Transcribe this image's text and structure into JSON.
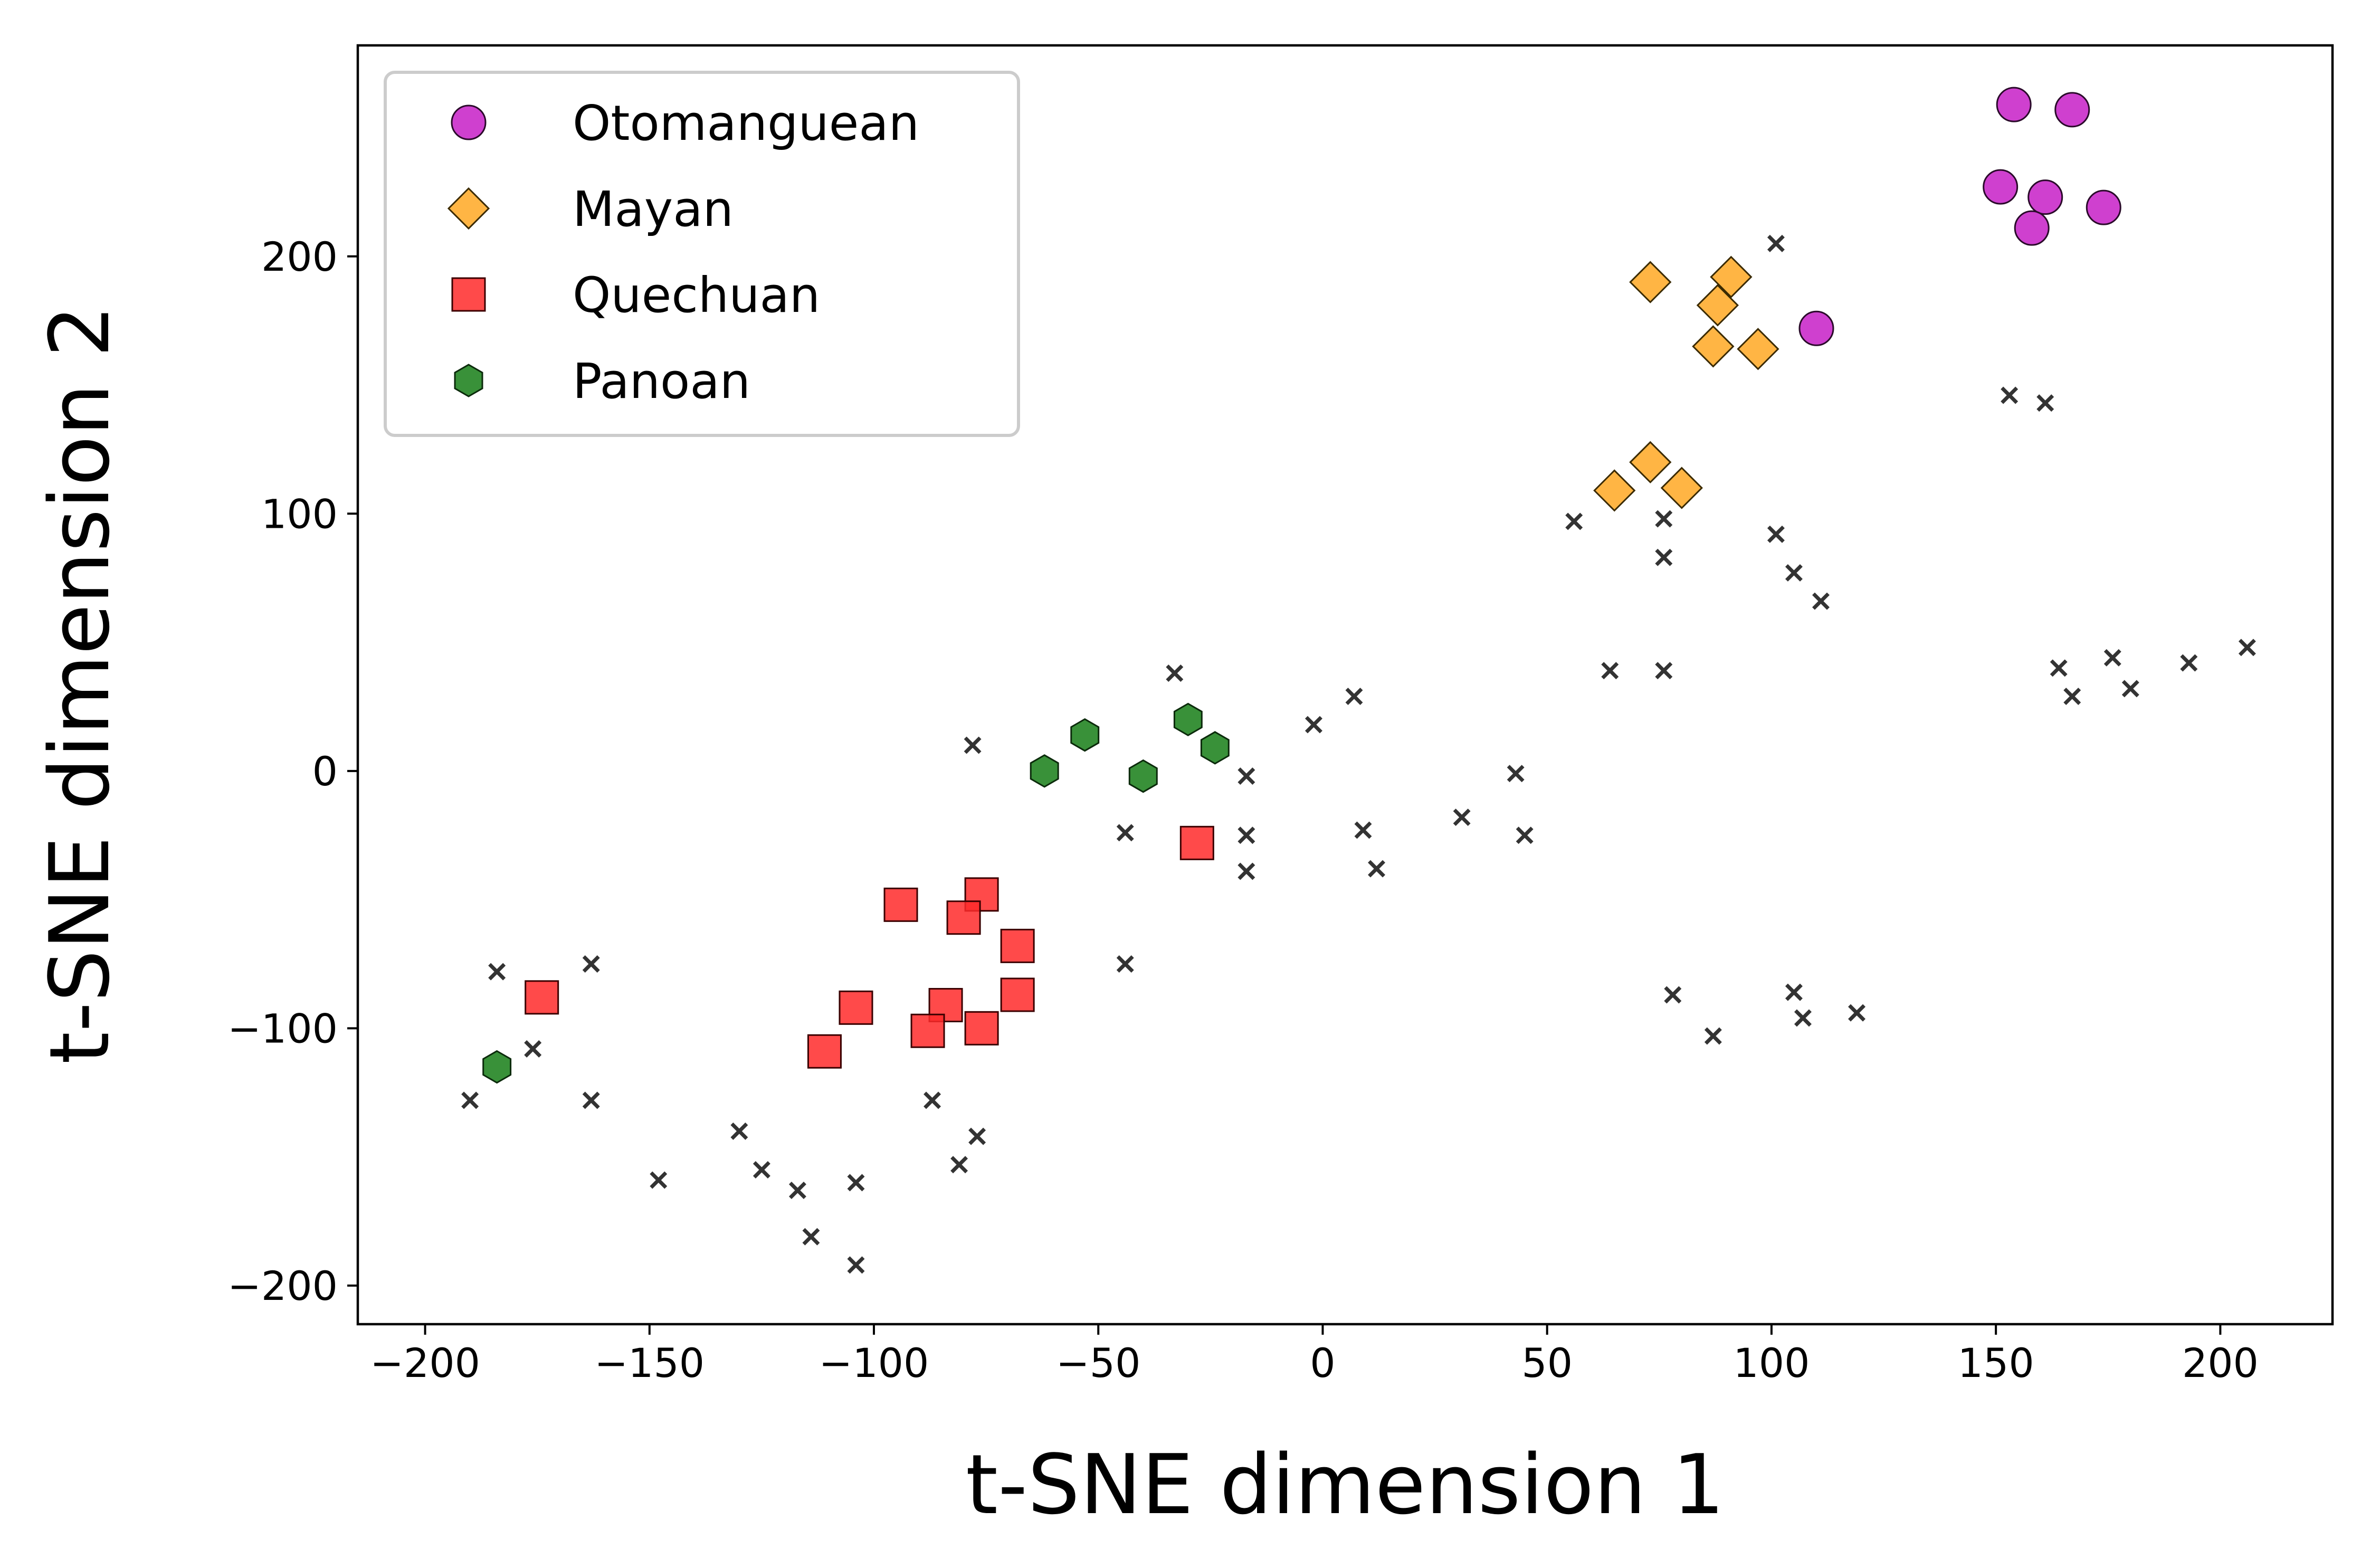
{
  "chart_data": {
    "type": "scatter",
    "xlabel": "t-SNE dimension 1",
    "ylabel": "t-SNE dimension 2",
    "xlim": [
      -215,
      225
    ],
    "ylim": [
      -215,
      282
    ],
    "xticks": [
      -200,
      -150,
      -100,
      -50,
      0,
      50,
      100,
      150,
      200
    ],
    "yticks": [
      -200,
      -100,
      0,
      100,
      200
    ],
    "xtick_labels": [
      "−200",
      "−150",
      "−100",
      "−50",
      "0",
      "50",
      "100",
      "150",
      "200"
    ],
    "ytick_labels": [
      "−200",
      "−100",
      "0",
      "100",
      "200"
    ],
    "grid": false,
    "legend_position": "top-left",
    "series": [
      {
        "name": "Otomanguean",
        "marker": "circle",
        "color": "#c71fc7",
        "points": [
          [
            154,
            259
          ],
          [
            167,
            257
          ],
          [
            151,
            227
          ],
          [
            161,
            223
          ],
          [
            158,
            211
          ],
          [
            174,
            219
          ],
          [
            110,
            172
          ]
        ]
      },
      {
        "name": "Mayan",
        "marker": "diamond",
        "color": "#ffa823",
        "points": [
          [
            73,
            190
          ],
          [
            91,
            192
          ],
          [
            88,
            181
          ],
          [
            87,
            165
          ],
          [
            97,
            164
          ],
          [
            73,
            120
          ],
          [
            65,
            109
          ],
          [
            80,
            110
          ]
        ]
      },
      {
        "name": "Quechuan",
        "marker": "square",
        "color": "#ff2a2a",
        "points": [
          [
            -28,
            -28
          ],
          [
            -94,
            -52
          ],
          [
            -76,
            -48
          ],
          [
            -80,
            -57
          ],
          [
            -68,
            -68
          ],
          [
            -68,
            -87
          ],
          [
            -174,
            -88
          ],
          [
            -104,
            -92
          ],
          [
            -84,
            -91
          ],
          [
            -76,
            -100
          ],
          [
            -88,
            -101
          ],
          [
            -111,
            -109
          ]
        ]
      },
      {
        "name": "Panoan",
        "marker": "hexagon",
        "color": "#2e8b2e",
        "points": [
          [
            -53,
            14
          ],
          [
            -30,
            20
          ],
          [
            -24,
            9
          ],
          [
            -62,
            0
          ],
          [
            -40,
            -2
          ],
          [
            -184,
            -115
          ]
        ]
      },
      {
        "name": "",
        "marker": "x",
        "color": "#333333",
        "points": [
          [
            101,
            205
          ],
          [
            153,
            146
          ],
          [
            161,
            143
          ],
          [
            56,
            97
          ],
          [
            76,
            98
          ],
          [
            101,
            92
          ],
          [
            76,
            83
          ],
          [
            105,
            77
          ],
          [
            111,
            66
          ],
          [
            64,
            39
          ],
          [
            76,
            39
          ],
          [
            164,
            40
          ],
          [
            176,
            44
          ],
          [
            167,
            29
          ],
          [
            180,
            32
          ],
          [
            193,
            42
          ],
          [
            206,
            48
          ],
          [
            -33,
            38
          ],
          [
            7,
            29
          ],
          [
            -2,
            18
          ],
          [
            -78,
            10
          ],
          [
            -17,
            -2
          ],
          [
            43,
            -1
          ],
          [
            -44,
            -24
          ],
          [
            9,
            -23
          ],
          [
            -17,
            -25
          ],
          [
            31,
            -18
          ],
          [
            45,
            -25
          ],
          [
            12,
            -38
          ],
          [
            -17,
            -39
          ],
          [
            -44,
            -75
          ],
          [
            -184,
            -78
          ],
          [
            -163,
            -75
          ],
          [
            78,
            -87
          ],
          [
            105,
            -86
          ],
          [
            87,
            -103
          ],
          [
            107,
            -96
          ],
          [
            119,
            -94
          ],
          [
            -176,
            -108
          ],
          [
            -190,
            -128
          ],
          [
            -163,
            -128
          ],
          [
            -87,
            -128
          ],
          [
            -130,
            -140
          ],
          [
            -77,
            -142
          ],
          [
            -125,
            -155
          ],
          [
            -81,
            -153
          ],
          [
            -148,
            -159
          ],
          [
            -117,
            -163
          ],
          [
            -104,
            -160
          ],
          [
            -114,
            -181
          ],
          [
            -104,
            -192
          ]
        ]
      }
    ]
  }
}
